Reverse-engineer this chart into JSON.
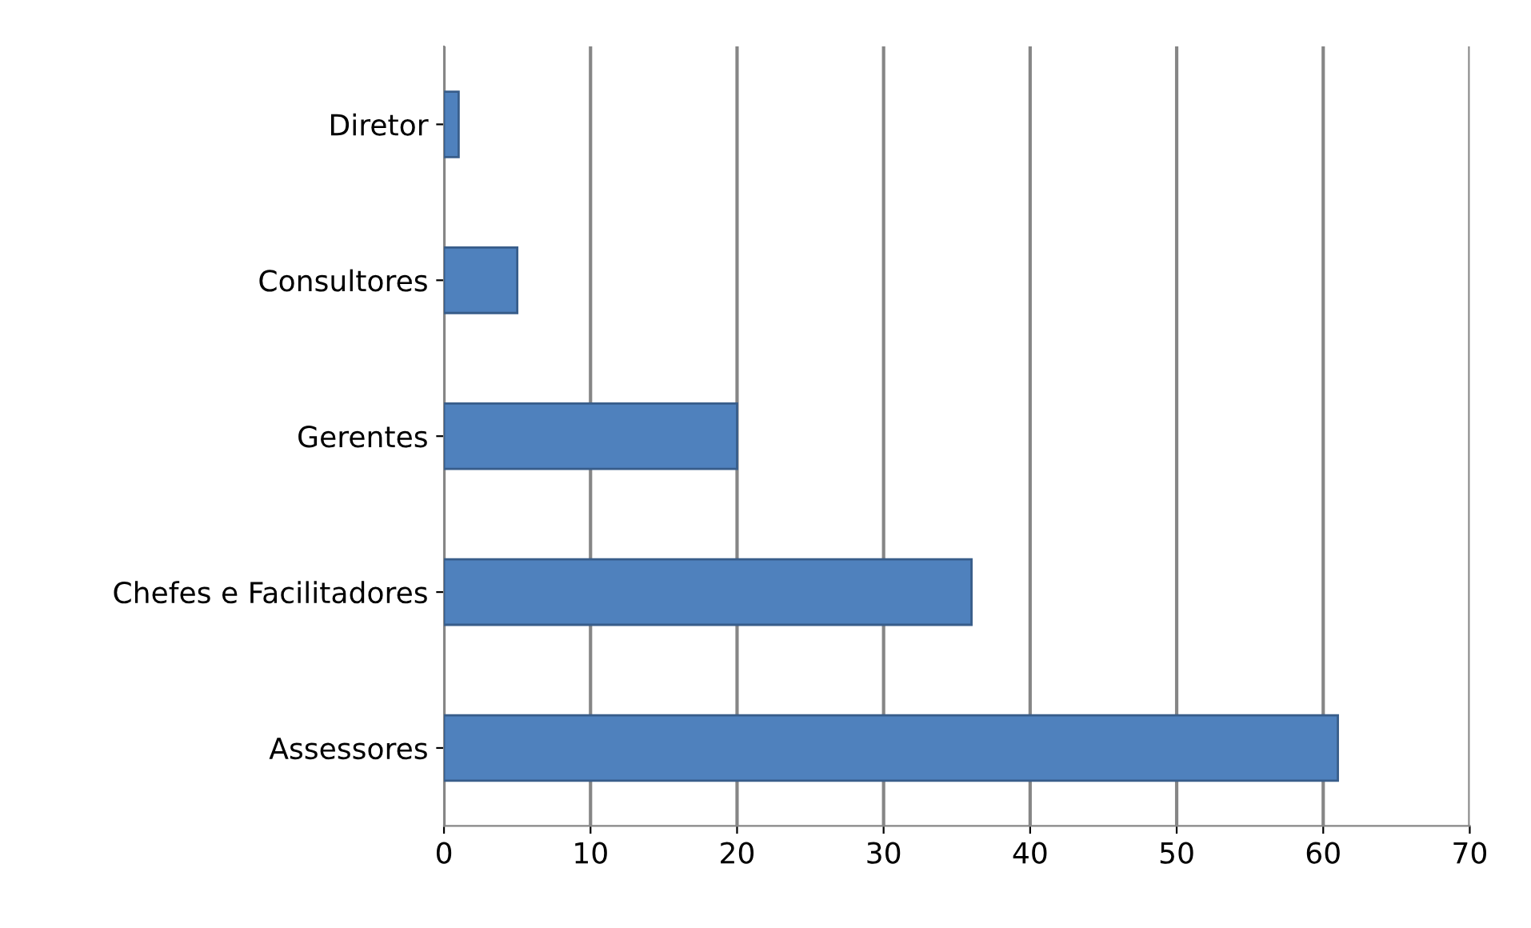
{
  "chart_data": {
    "type": "bar",
    "orientation": "horizontal",
    "categories": [
      "Diretor",
      "Consultores",
      "Gerentes",
      "Chefes e Facilitadores",
      "Assessores"
    ],
    "values": [
      1,
      5,
      20,
      36,
      61
    ],
    "color": "#4f81bd",
    "xlim": [
      0,
      70
    ],
    "xticks": [
      0,
      10,
      20,
      30,
      40,
      50,
      60,
      70
    ],
    "grid": "x",
    "legend": false
  }
}
